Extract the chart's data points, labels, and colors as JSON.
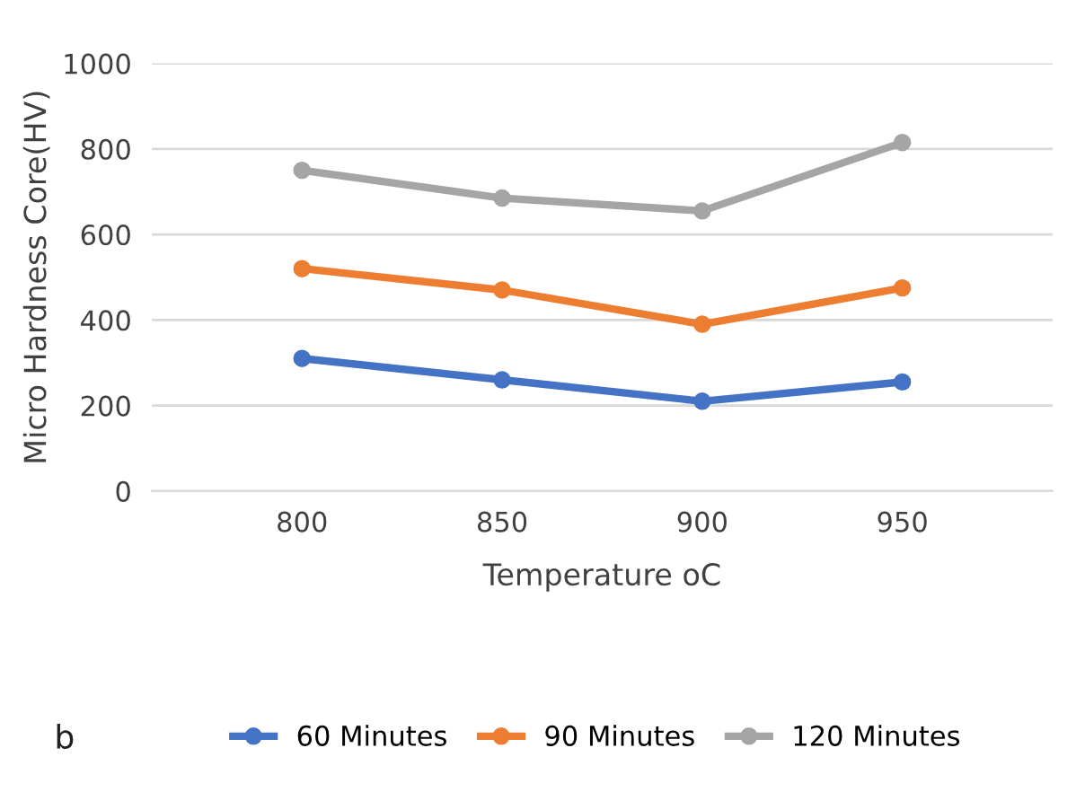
{
  "chart_data": {
    "type": "line",
    "categories": [
      "800",
      "850",
      "900",
      "950"
    ],
    "series": [
      {
        "name": "60 Minutes",
        "color": "#4472c4",
        "values": [
          310,
          260,
          210,
          255
        ]
      },
      {
        "name": "90 Minutes",
        "color": "#ed7d31",
        "values": [
          520,
          470,
          390,
          475
        ]
      },
      {
        "name": "120 Minutes",
        "color": "#a5a5a5",
        "values": [
          750,
          685,
          655,
          815
        ]
      }
    ],
    "xlabel": "Temperature oC",
    "ylabel": "Micro Hardness Core(HV)",
    "ylim": [
      0,
      1000
    ],
    "yticks": [
      0,
      200,
      400,
      600,
      800,
      1000
    ],
    "grid": "y",
    "legend": "bottom",
    "marker": "circle",
    "line_style": "solid",
    "annotations": [
      "b"
    ]
  }
}
